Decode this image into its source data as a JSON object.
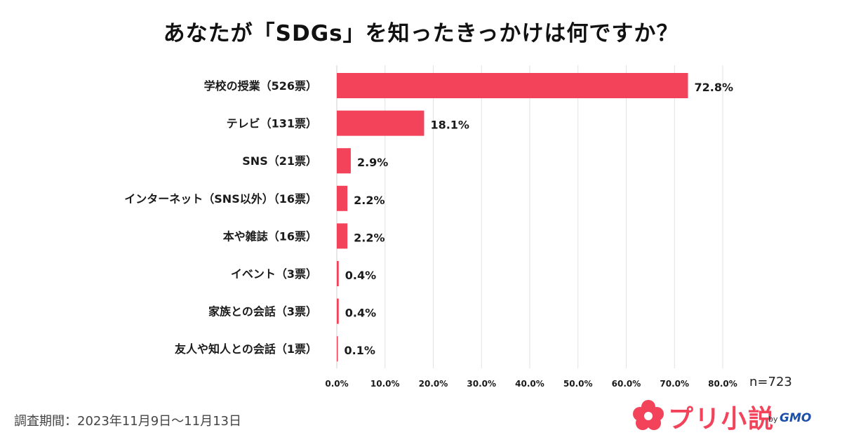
{
  "chart_data": {
    "type": "bar",
    "orientation": "horizontal",
    "title": "あなたが「SDGs」を知ったきっかけは何ですか？",
    "categories": [
      "学校の授業（526票）",
      "テレビ（131票）",
      "SNS（21票）",
      "インターネット（SNS以外）（16票）",
      "本や雑誌（16票）",
      "イベント（3票）",
      "家族との会話（3票）",
      "友人や知人との会話（1票）"
    ],
    "values": [
      72.8,
      18.1,
      2.9,
      2.2,
      2.2,
      0.4,
      0.4,
      0.1
    ],
    "value_labels": [
      "72.8%",
      "18.1%",
      "2.9%",
      "2.2%",
      "2.2%",
      "0.4%",
      "0.4%",
      "0.1%"
    ],
    "xlim": [
      0,
      80
    ],
    "x_ticks": [
      0,
      10,
      20,
      30,
      40,
      50,
      60,
      70,
      80
    ],
    "x_tick_labels": [
      "0.0%",
      "10.0%",
      "20.0%",
      "30.0%",
      "40.0%",
      "50.0%",
      "60.0%",
      "70.0%",
      "80.0%"
    ],
    "grid": "vertical",
    "bar_color": "#f2435a",
    "note": "n=723"
  },
  "footer": {
    "period": "調査期間：2023年11月9日〜11月13日"
  },
  "logo": {
    "name": "プリ小説",
    "by": "by",
    "company": "GMO",
    "icon": "flower-icon"
  }
}
